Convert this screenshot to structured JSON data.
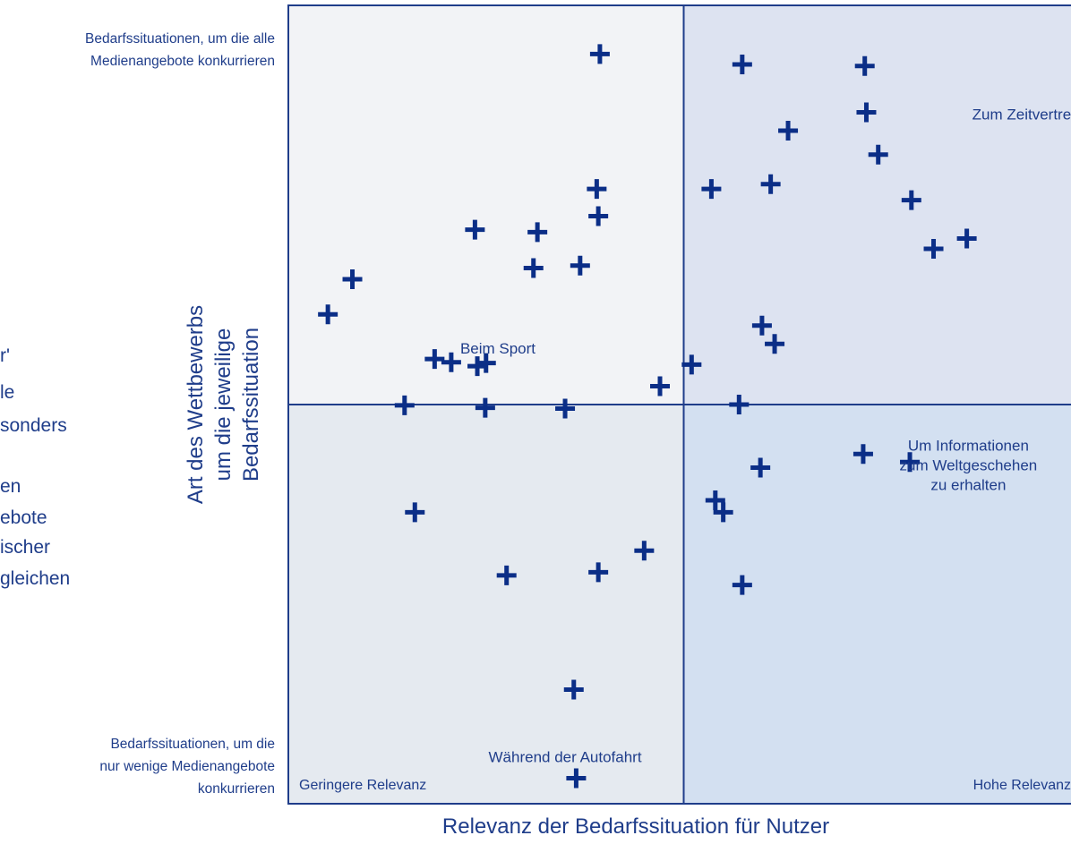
{
  "chart_data": {
    "type": "scatter",
    "xlabel": "Relevanz der Bedarfssituation für Nutzer",
    "ylabel_lines": [
      "Art des Wettbewerbs",
      "um die jeweilige",
      "Bedarfssituation"
    ],
    "y_top_label": [
      "Bedarfssituationen, um die alle",
      "Medienangebote konkurrieren"
    ],
    "y_bottom_label": [
      "Bedarfssituationen, um die",
      "nur wenige Medienangebote",
      "konkurrieren"
    ],
    "x_left_label": "Geringere Relevanz",
    "x_right_label": "Hohe Relevanz",
    "xlim": [
      0,
      100
    ],
    "ylim": [
      0,
      100
    ],
    "quadrant_split": {
      "x": 50,
      "y": 50
    },
    "colors": {
      "marker": "#0b2e87",
      "text": "#1f3d8a",
      "frame": "#1f3d8a",
      "quadrant_top_left": "#f2f3f6",
      "quadrant_top_right": "#dde3f1",
      "quadrant_bottom_left": "#e5eaf0",
      "quadrant_bottom_right": "#d3e0f1"
    },
    "annotations": [
      {
        "text_lines": [
          "Zum Zeitvertreib"
        ],
        "x": 100.5,
        "y": 85.7,
        "anchor": "end"
      },
      {
        "text_lines": [
          "Beim Sport"
        ],
        "x": 26.5,
        "y": 56.4,
        "anchor": "middle"
      },
      {
        "text_lines": [
          "Um Informationen",
          "zum Weltgeschehen",
          "zu erhalten"
        ],
        "x": 86.0,
        "y": 44.2,
        "anchor": "middle"
      },
      {
        "text_lines": [
          "Während der Autofahrt"
        ],
        "x": 35.0,
        "y": 5.2,
        "anchor": "middle"
      }
    ],
    "side_text_fragments": [
      "r'",
      "le",
      "sonders",
      "en",
      "ebote",
      "ischer",
      "gleichen"
    ],
    "points": [
      {
        "x": 39.4,
        "y": 93.9
      },
      {
        "x": 63.2,
        "y": 84.3
      },
      {
        "x": 57.0,
        "y": 50.0
      },
      {
        "x": 5.0,
        "y": 61.3
      },
      {
        "x": 8.1,
        "y": 65.7
      },
      {
        "x": 23.6,
        "y": 71.9
      },
      {
        "x": 31.5,
        "y": 71.6
      },
      {
        "x": 31.0,
        "y": 67.1
      },
      {
        "x": 36.9,
        "y": 67.4
      },
      {
        "x": 39.0,
        "y": 77.0
      },
      {
        "x": 39.2,
        "y": 73.6
      },
      {
        "x": 18.5,
        "y": 55.7
      },
      {
        "x": 20.6,
        "y": 55.3
      },
      {
        "x": 23.9,
        "y": 54.8
      },
      {
        "x": 25.0,
        "y": 55.2
      },
      {
        "x": 47.0,
        "y": 52.3
      },
      {
        "x": 51.0,
        "y": 55.0
      },
      {
        "x": 14.7,
        "y": 49.9
      },
      {
        "x": 24.9,
        "y": 49.6
      },
      {
        "x": 35.0,
        "y": 49.5
      },
      {
        "x": 53.5,
        "y": 77.0
      },
      {
        "x": 61.0,
        "y": 77.6
      },
      {
        "x": 57.4,
        "y": 92.6
      },
      {
        "x": 72.9,
        "y": 92.4
      },
      {
        "x": 73.1,
        "y": 86.6
      },
      {
        "x": 74.6,
        "y": 81.3
      },
      {
        "x": 78.8,
        "y": 75.6
      },
      {
        "x": 81.6,
        "y": 69.5
      },
      {
        "x": 85.8,
        "y": 70.8
      },
      {
        "x": 59.9,
        "y": 59.9
      },
      {
        "x": 61.5,
        "y": 57.6
      },
      {
        "x": 72.7,
        "y": 43.8
      },
      {
        "x": 78.6,
        "y": 42.8
      },
      {
        "x": 59.7,
        "y": 42.1
      },
      {
        "x": 54.0,
        "y": 38.0
      },
      {
        "x": 55.0,
        "y": 36.5
      },
      {
        "x": 16.0,
        "y": 36.5
      },
      {
        "x": 27.6,
        "y": 28.6
      },
      {
        "x": 39.2,
        "y": 29.0
      },
      {
        "x": 45.0,
        "y": 31.7
      },
      {
        "x": 57.4,
        "y": 27.4
      },
      {
        "x": 36.1,
        "y": 14.3
      },
      {
        "x": 36.4,
        "y": 3.2
      }
    ]
  }
}
